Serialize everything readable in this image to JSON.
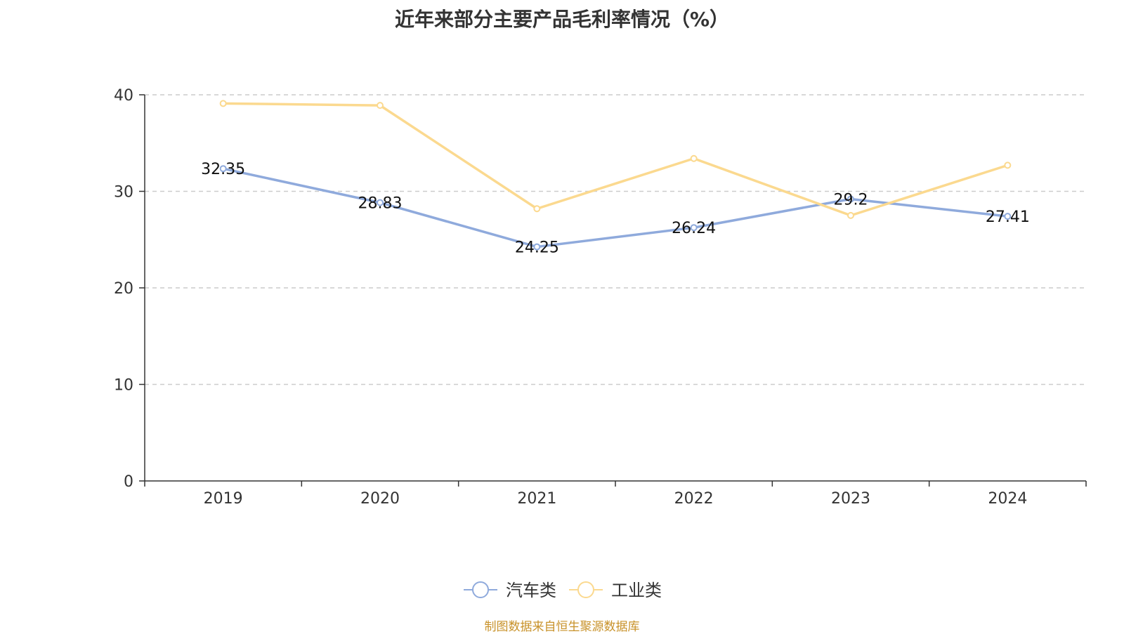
{
  "chart_data": {
    "type": "line",
    "title": "近年来部分主要产品毛利率情况（%）",
    "categories": [
      "2019",
      "2020",
      "2021",
      "2022",
      "2023",
      "2024"
    ],
    "series": [
      {
        "name": "汽车类",
        "color": "#8faadc",
        "values": [
          32.35,
          28.83,
          24.25,
          26.24,
          29.2,
          27.41
        ],
        "labels": [
          "32.35",
          "28.83",
          "24.25",
          "26.24",
          "29.2",
          "27.41"
        ],
        "show_labels": true
      },
      {
        "name": "工业类",
        "color": "#fbd98f",
        "values": [
          39.1,
          38.9,
          28.2,
          33.4,
          27.5,
          32.7
        ],
        "show_labels": false
      }
    ],
    "ylim": [
      0,
      40
    ],
    "yticks": [
      "0",
      "10",
      "20",
      "30",
      "40"
    ],
    "grid": true,
    "legend_position": "bottom-center",
    "xlabel": "",
    "ylabel": ""
  },
  "source": "制图数据来自恒生聚源数据库"
}
